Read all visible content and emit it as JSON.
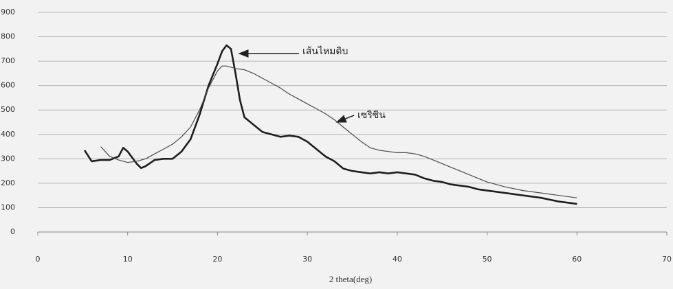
{
  "chart_data": {
    "type": "line",
    "x_label": "2 theta(deg)",
    "xlim": [
      0,
      70
    ],
    "xticks": [
      0,
      10,
      20,
      30,
      40,
      50,
      60,
      70
    ],
    "ylim": [
      0,
      900
    ],
    "yticks": [
      0,
      100,
      200,
      300,
      400,
      500,
      600,
      700,
      800,
      900
    ],
    "grid": true,
    "series": [
      {
        "name": "เส้นไหมดิบ",
        "color": "#1e1e1e",
        "x": [
          5.2,
          6,
          7,
          8,
          9,
          9.5,
          10,
          11,
          11.5,
          12,
          13,
          14,
          15,
          16,
          17,
          18,
          19,
          20,
          20.5,
          21,
          21.5,
          22,
          22.5,
          23,
          24,
          25,
          26,
          27,
          28,
          29,
          30,
          31,
          32,
          33,
          34,
          35,
          36,
          37,
          38,
          39,
          40,
          41,
          42,
          43,
          44,
          45,
          46,
          47,
          48,
          49,
          50,
          52,
          54,
          56,
          58,
          59,
          60
        ],
        "values": [
          335,
          290,
          295,
          295,
          310,
          345,
          330,
          280,
          262,
          270,
          295,
          300,
          300,
          330,
          380,
          480,
          600,
          690,
          740,
          765,
          750,
          650,
          540,
          470,
          440,
          410,
          400,
          390,
          395,
          390,
          370,
          340,
          310,
          290,
          260,
          250,
          245,
          240,
          245,
          240,
          245,
          240,
          235,
          220,
          210,
          205,
          195,
          190,
          185,
          175,
          170,
          160,
          150,
          140,
          125,
          120,
          115
        ]
      },
      {
        "name": "เซริซิน",
        "color": "#4a4a4a",
        "x": [
          7,
          8,
          9,
          10,
          11,
          12,
          13,
          14,
          15,
          16,
          17,
          18,
          19,
          20,
          20.5,
          21,
          22,
          23,
          24,
          25,
          26,
          27,
          28,
          29,
          30,
          31,
          32,
          33,
          34,
          35,
          36,
          37,
          38,
          39,
          40,
          41,
          42,
          43,
          44,
          45,
          46,
          47,
          48,
          49,
          50,
          52,
          54,
          56,
          58,
          60
        ],
        "values": [
          350,
          310,
          295,
          285,
          290,
          300,
          320,
          340,
          360,
          390,
          430,
          500,
          590,
          660,
          680,
          680,
          670,
          665,
          650,
          630,
          610,
          590,
          565,
          545,
          525,
          505,
          485,
          460,
          430,
          400,
          370,
          345,
          335,
          330,
          325,
          325,
          320,
          310,
          295,
          280,
          265,
          250,
          235,
          220,
          205,
          185,
          170,
          160,
          150,
          140
        ]
      }
    ]
  }
}
